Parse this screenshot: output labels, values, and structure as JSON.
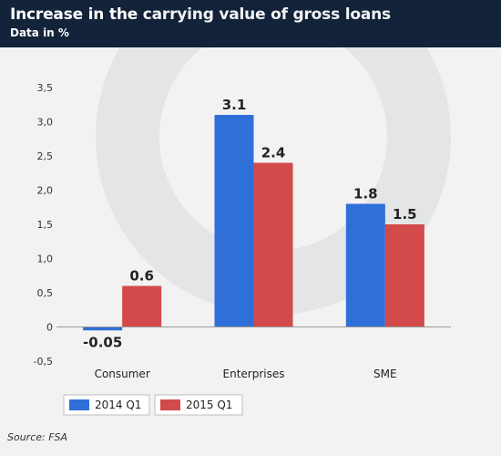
{
  "header": {
    "title": "Increase in the carrying value of gross loans",
    "subtitle": "Data in %"
  },
  "source": "Source: FSA",
  "colors": {
    "header_bg": "#13233a",
    "background": "#f2f2f2",
    "series_2014": "#2f6fd8",
    "series_2015": "#d24a4a"
  },
  "chart_data": {
    "type": "bar",
    "categories": [
      "Consumer",
      "Enterprises",
      "SME"
    ],
    "series": [
      {
        "name": "2014 Q1",
        "values": [
          -0.05,
          3.1,
          1.8
        ],
        "labels": [
          "-0.05",
          "3.1",
          "1.8"
        ]
      },
      {
        "name": "2015 Q1",
        "values": [
          0.6,
          2.4,
          1.5
        ],
        "labels": [
          "0.6",
          "2.4",
          "1.5"
        ]
      }
    ],
    "ylim": [
      -0.5,
      3.5
    ],
    "yticks": [
      -0.5,
      0,
      0.5,
      1.0,
      1.5,
      2.0,
      2.5,
      3.0,
      3.5
    ],
    "ytick_labels": [
      "-0,5",
      "0",
      "0,5",
      "1,0",
      "1,5",
      "2,0",
      "2,5",
      "3,0",
      "3,5"
    ],
    "grid": false,
    "legend_position": "bottom-left"
  }
}
